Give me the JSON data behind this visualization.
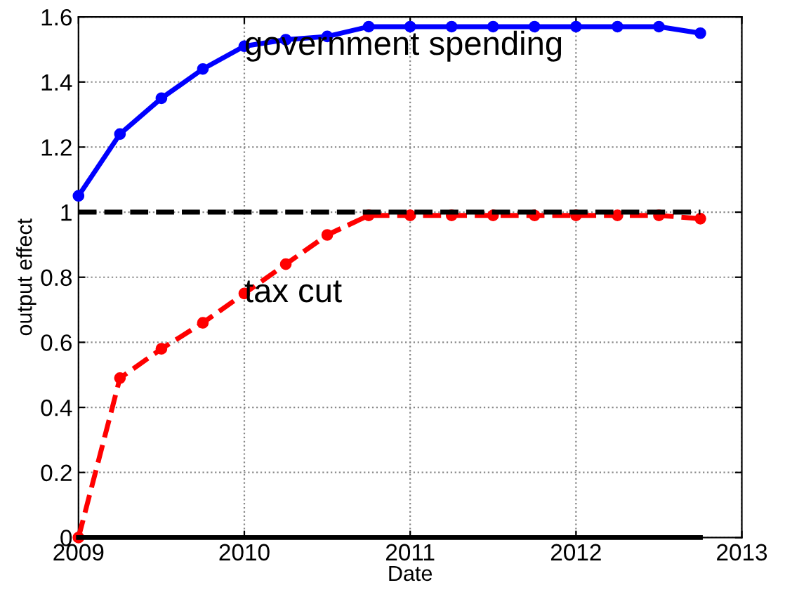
{
  "chart_data": {
    "type": "line",
    "xlabel": "Date",
    "ylabel": "output effect",
    "x": [
      2009,
      2009.25,
      2009.5,
      2009.75,
      2010,
      2010.25,
      2010.5,
      2010.75,
      2011,
      2011.25,
      2011.5,
      2011.75,
      2012,
      2012.25,
      2012.5,
      2012.75
    ],
    "series": [
      {
        "color": "#0000ff",
        "marker": "circle",
        "line_style": "solid",
        "values": [
          1.05,
          1.24,
          1.35,
          1.44,
          1.51,
          1.53,
          1.54,
          1.57,
          1.57,
          1.57,
          1.57,
          1.57,
          1.57,
          1.57,
          1.57,
          1.55
        ]
      },
      {
        "color": "#ff0000",
        "marker": "circle",
        "line_style": "dashed",
        "values": [
          0,
          0.49,
          0.58,
          0.66,
          0.75,
          0.84,
          0.93,
          0.99,
          0.99,
          0.99,
          0.99,
          0.99,
          0.99,
          0.99,
          0.99,
          0.98
        ]
      },
      {
        "color": "#000000",
        "marker": "none",
        "line_style": "dashed",
        "values": [
          1,
          1,
          1,
          1,
          1,
          1,
          1,
          1,
          1,
          1,
          1,
          1,
          1,
          1,
          1,
          1
        ]
      },
      {
        "color": "#000000",
        "marker": "none",
        "line_style": "solid",
        "values": [
          0,
          0,
          0,
          0,
          0,
          0,
          0,
          0,
          0,
          0,
          0,
          0,
          0,
          0,
          0,
          0
        ]
      }
    ],
    "annotations": [
      {
        "text": "government spending",
        "x": 2010,
        "y": 1.51
      },
      {
        "text": "tax cut",
        "x": 2010,
        "y": 0.75
      }
    ],
    "xlim": [
      2009,
      2013
    ],
    "xticks": [
      2009,
      2010,
      2011,
      2012,
      2013
    ],
    "ylim": [
      0,
      1.6
    ],
    "yticks": [
      0,
      0.2,
      0.4,
      0.6,
      0.8,
      1,
      1.2,
      1.4,
      1.6
    ],
    "grid": true,
    "legend": false
  }
}
